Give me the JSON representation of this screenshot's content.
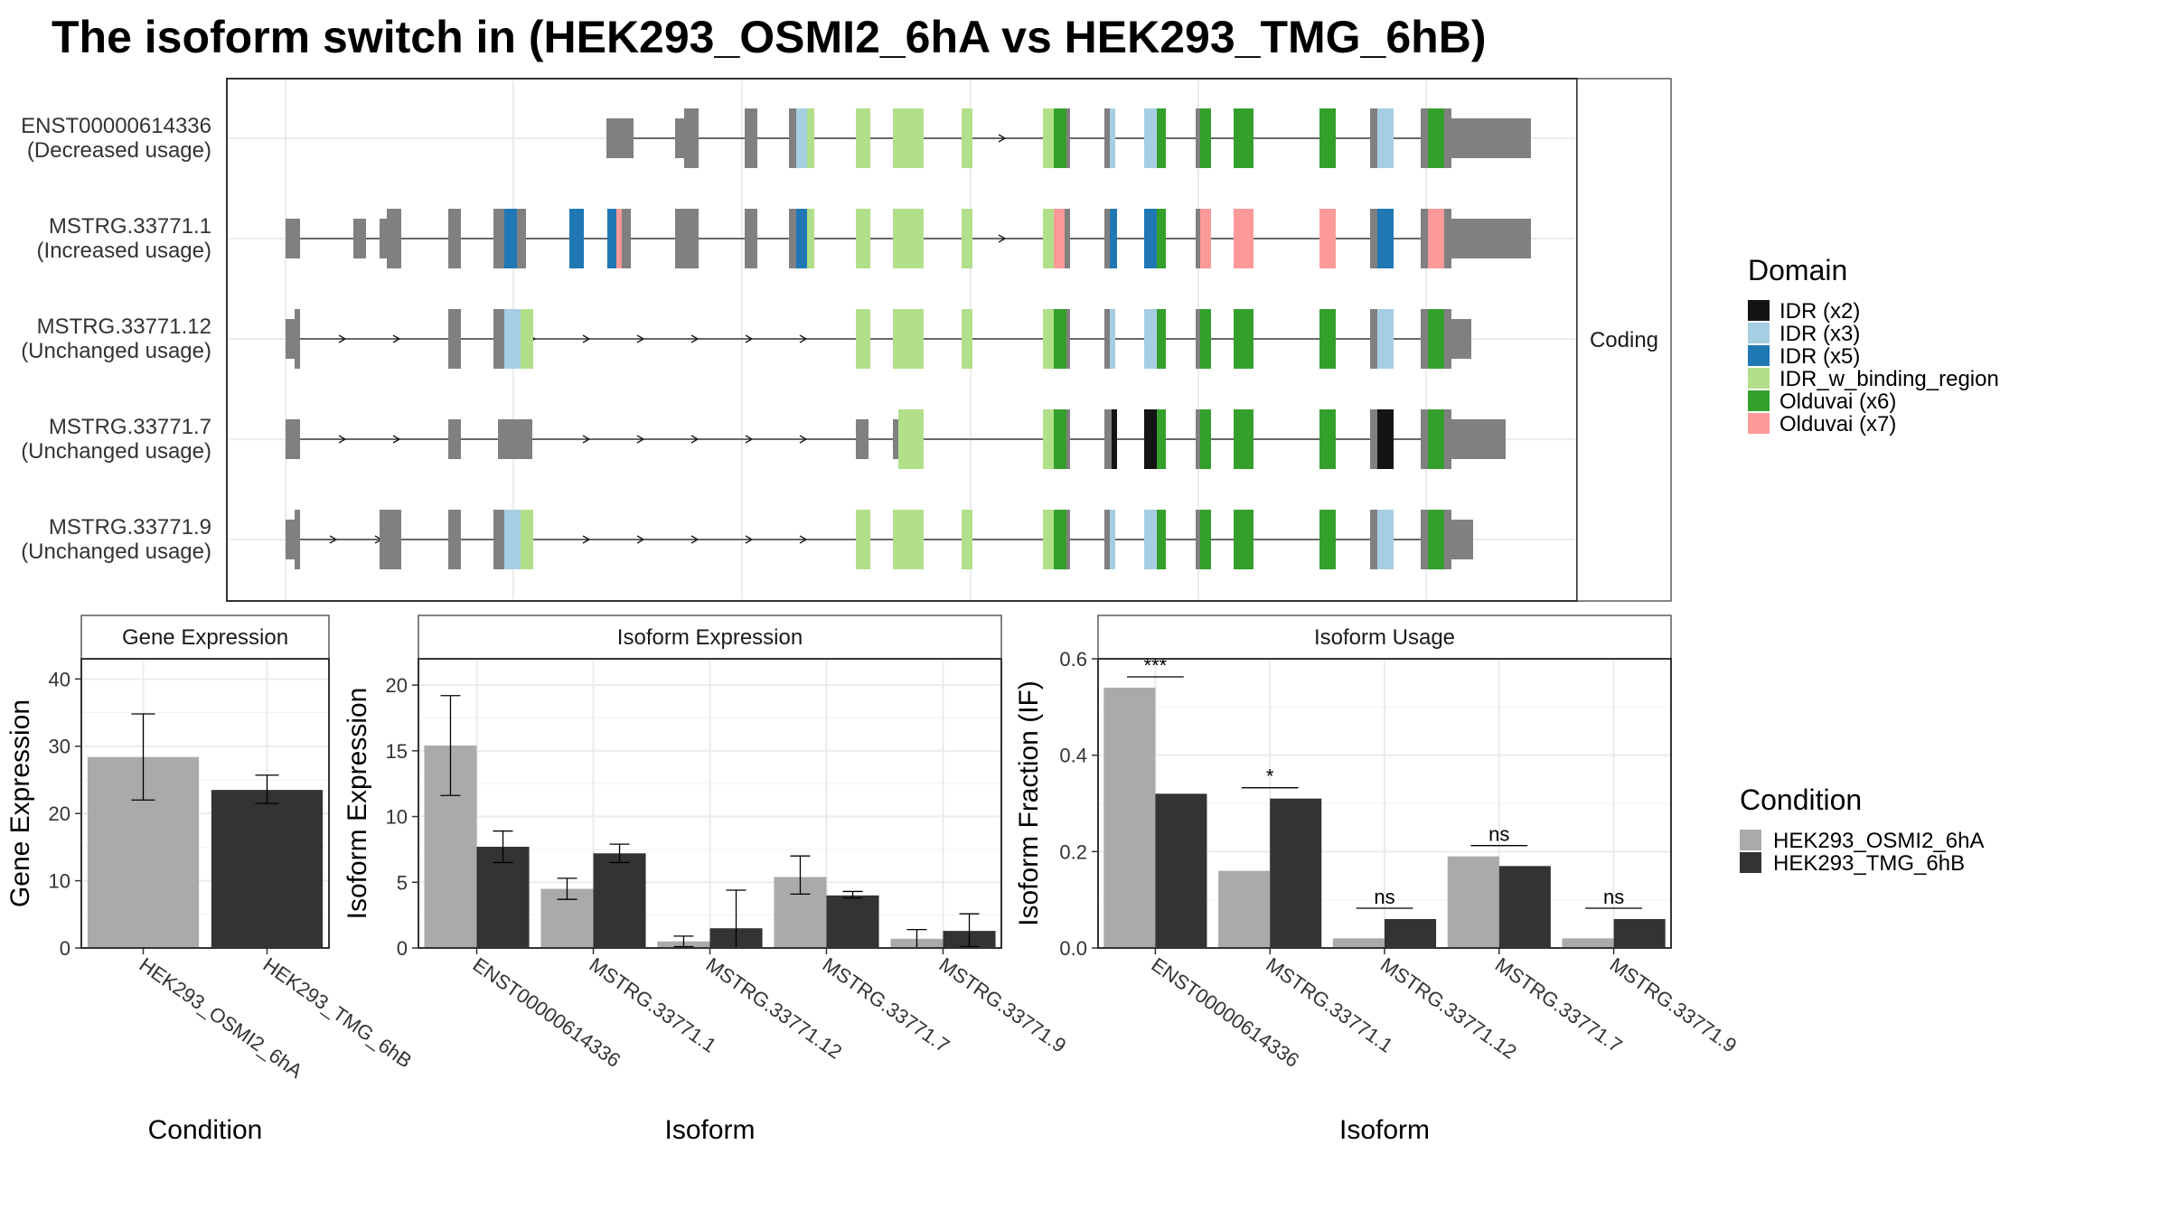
{
  "title": "The isoform switch in  (HEK293_OSMI2_6hA vs HEK293_TMG_6hB)",
  "colors": {
    "panel_border": "#333333",
    "grid": "#ebebeb",
    "strip_bg": "#ffffff",
    "exon_other": "#808080",
    "condition_a": "#aaaaaa",
    "condition_b": "#333333"
  },
  "structure_panel": {
    "strip_label": "Coding",
    "transcripts": [
      {
        "name": "ENST00000614336",
        "usage": "(Decreased usage)"
      },
      {
        "name": "MSTRG.33771.1",
        "usage": "(Increased usage)"
      },
      {
        "name": "MSTRG.33771.12",
        "usage": "(Unchanged usage)"
      },
      {
        "name": "MSTRG.33771.7",
        "usage": "(Unchanged usage)"
      },
      {
        "name": "MSTRG.33771.9",
        "usage": "(Unchanged usage)"
      }
    ]
  },
  "domain_legend": {
    "title": "Domain",
    "items": [
      {
        "label": "IDR (x2)",
        "color": "#141414"
      },
      {
        "label": "IDR (x3)",
        "color": "#a6cee3"
      },
      {
        "label": "IDR (x5)",
        "color": "#1f78b4"
      },
      {
        "label": "IDR_w_binding_region",
        "color": "#b2df8a"
      },
      {
        "label": "Olduvai (x6)",
        "color": "#33a02c"
      },
      {
        "label": "Olduvai (x7)",
        "color": "#fb9a99"
      }
    ]
  },
  "condition_legend": {
    "title": "Condition",
    "items": [
      {
        "label": "HEK293_OSMI2_6hA",
        "color": "#aaaaaa"
      },
      {
        "label": "HEK293_TMG_6hB",
        "color": "#333333"
      }
    ]
  },
  "chart_data": [
    {
      "type": "bar",
      "title": "Gene Expression",
      "xlabel": "Condition",
      "ylabel": "Gene Expression",
      "ylim": [
        0,
        43
      ],
      "yticks": [
        0,
        10,
        20,
        30,
        40
      ],
      "categories": [
        "HEK293_OSMI2_6hA",
        "HEK293_TMG_6hB"
      ],
      "values": [
        28.4,
        23.5
      ],
      "error_low": [
        22,
        21.5
      ],
      "error_high": [
        34.8,
        25.7
      ],
      "colors": [
        "#aaaaaa",
        "#333333"
      ]
    },
    {
      "type": "bar",
      "title": "Isoform Expression",
      "xlabel": "Isoform",
      "ylabel": "Isoform Expression",
      "ylim": [
        0,
        22
      ],
      "yticks": [
        0,
        5,
        10,
        15,
        20
      ],
      "categories": [
        "ENST00000614336",
        "MSTRG.33771.1",
        "MSTRG.33771.12",
        "MSTRG.33771.7",
        "MSTRG.33771.9"
      ],
      "series": [
        {
          "name": "HEK293_OSMI2_6hA",
          "color": "#aaaaaa",
          "values": [
            15.4,
            4.5,
            0.5,
            5.4,
            0.7
          ],
          "error_low": [
            11.6,
            3.7,
            0.1,
            4.1,
            0.0
          ],
          "error_high": [
            19.2,
            5.3,
            0.9,
            7.0,
            1.4
          ]
        },
        {
          "name": "HEK293_TMG_6hB",
          "color": "#333333",
          "values": [
            7.7,
            7.2,
            1.5,
            4.0,
            1.3
          ],
          "error_low": [
            6.5,
            6.5,
            0.0,
            3.8,
            0.1
          ],
          "error_high": [
            8.9,
            7.9,
            4.4,
            4.3,
            2.6
          ]
        }
      ]
    },
    {
      "type": "bar",
      "title": "Isoform Usage",
      "xlabel": "Isoform",
      "ylabel": "Isoform Fraction (IF)",
      "ylim": [
        0,
        0.6
      ],
      "yticks": [
        0.0,
        0.2,
        0.4,
        0.6
      ],
      "ytick_labels": [
        "0.0",
        "0.2",
        "0.4",
        "0.6"
      ],
      "categories": [
        "ENST00000614336",
        "MSTRG.33771.1",
        "MSTRG.33771.12",
        "MSTRG.33771.7",
        "MSTRG.33771.9"
      ],
      "series": [
        {
          "name": "HEK293_OSMI2_6hA",
          "color": "#aaaaaa",
          "values": [
            0.54,
            0.16,
            0.02,
            0.19,
            0.02
          ]
        },
        {
          "name": "HEK293_TMG_6hB",
          "color": "#333333",
          "values": [
            0.32,
            0.31,
            0.06,
            0.17,
            0.06
          ]
        }
      ],
      "significance": [
        "***",
        "*",
        "ns",
        "ns",
        "ns"
      ]
    }
  ]
}
